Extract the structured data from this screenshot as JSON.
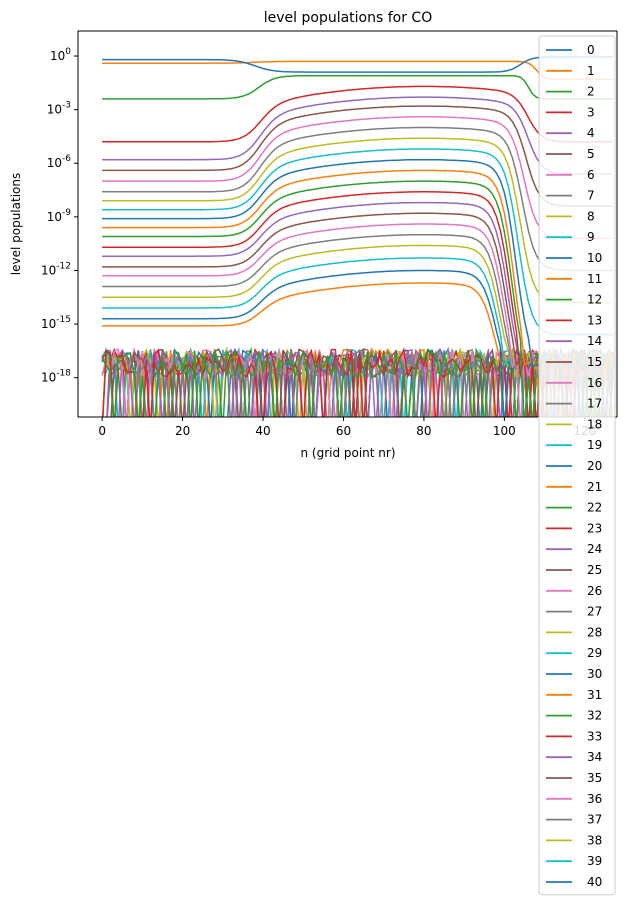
{
  "chart_data": {
    "type": "line",
    "title": "level populations for CO",
    "xlabel": "n (grid point nr)",
    "ylabel": "level populations",
    "x_scale": "linear",
    "y_scale": "log",
    "xlim": [
      -6,
      128
    ],
    "ylim_exponent": [
      -20.2,
      1.4
    ],
    "x_ticks": [
      0,
      20,
      40,
      60,
      80,
      100,
      120
    ],
    "y_ticks_exponent": [
      0,
      -3,
      -6,
      -9,
      -12,
      -15,
      -18
    ],
    "y_tick_labels": [
      "10^0",
      "10^-3",
      "10^-6",
      "10^-9",
      "10^-12",
      "10^-15",
      "10^-18"
    ],
    "legend_position": "right",
    "grid": false,
    "colors": [
      "#1f77b4",
      "#ff7f0e",
      "#2ca02c",
      "#d62728",
      "#9467bd",
      "#8c564b",
      "#e377c2",
      "#7f7f7f",
      "#bcbd22",
      "#17becf"
    ],
    "series_names": [
      "0",
      "1",
      "2",
      "3",
      "4",
      "5",
      "6",
      "7",
      "8",
      "9",
      "10",
      "11",
      "12",
      "13",
      "14",
      "15",
      "16",
      "17",
      "18",
      "19",
      "20",
      "21",
      "22",
      "23",
      "24",
      "25",
      "26",
      "27",
      "28",
      "29",
      "30",
      "31",
      "32",
      "33",
      "34",
      "35",
      "36",
      "37",
      "38",
      "39",
      "40"
    ],
    "series_log10_at_x0": [
      -0.2,
      -0.4,
      -2.4,
      -4.8,
      -5.8,
      -6.4,
      -7.0,
      -7.6,
      -8.1,
      -8.6,
      -9.1,
      -9.6,
      -10.1,
      -10.7,
      -11.2,
      -11.8,
      -12.3,
      -12.9,
      -13.5,
      -14.1,
      -14.7,
      -15.1,
      -16.3,
      -16.6,
      -16.8,
      -16.9,
      -17.0,
      -17.1,
      -17.2,
      -17.3,
      -17.4,
      -17.5,
      -17.6,
      -17.7,
      -17.8,
      -17.9,
      -18.0,
      -18.0,
      -18.1,
      -18.1,
      -18.2
    ],
    "series_log10_peak_x80": [
      -0.9,
      -0.4,
      -1.1,
      -1.7,
      -2.3,
      -2.8,
      -3.4,
      -4.0,
      -4.6,
      -5.2,
      -5.8,
      -6.4,
      -7.0,
      -7.6,
      -8.2,
      -8.8,
      -9.4,
      -10.0,
      -10.6,
      -11.3,
      -12.0,
      -12.7,
      -13.4,
      -14.0,
      -14.6,
      -15.2,
      -15.7,
      -16.1,
      -16.6,
      -17.0,
      -17.2,
      -17.3,
      -17.4,
      -17.5,
      -17.6,
      -17.7,
      -17.7,
      -17.8,
      -17.8,
      -17.9,
      -17.9
    ]
  }
}
